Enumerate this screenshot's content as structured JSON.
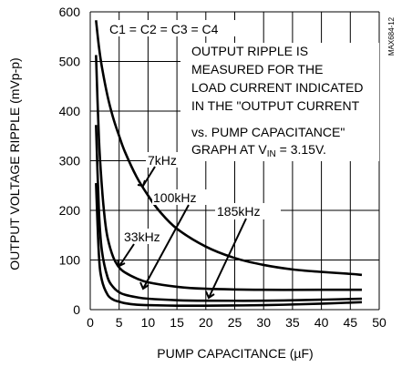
{
  "chart_data": {
    "type": "line",
    "title": "",
    "xlabel": "PUMP CAPACITANCE (µF)",
    "ylabel": "OUTPUT VOLTAGE RIPPLE (mVp-p)",
    "xlim": [
      0,
      50
    ],
    "ylim": [
      0,
      600
    ],
    "x_ticks": [
      "0",
      "5",
      "10",
      "15",
      "20",
      "25",
      "30",
      "35",
      "40",
      "45",
      "50"
    ],
    "y_ticks": [
      "0",
      "100",
      "200",
      "300",
      "400",
      "500",
      "600"
    ],
    "grid": true,
    "side_tag": "MAX684-12",
    "annotations": {
      "condition": "C1 = C2 = C3 = C4",
      "note_lines": [
        "OUTPUT RIPPLE IS",
        "MEASURED FOR THE",
        "LOAD CURRENT INDICATED",
        "IN THE \"OUTPUT CURRENT",
        "vs. PUMP CAPACITANCE\""
      ],
      "note_last_prefix": "GRAPH AT V",
      "note_last_sub": "IN",
      "note_last_suffix": " = 3.15V."
    },
    "series": [
      {
        "name": "7kHz",
        "x": [
          1,
          1.5,
          2,
          3,
          4,
          5,
          6,
          8,
          10,
          12,
          15,
          20,
          25,
          30,
          35,
          40,
          45,
          47
        ],
        "y": [
          583,
          530,
          490,
          430,
          385,
          350,
          318,
          268,
          230,
          198,
          163,
          127,
          104,
          90,
          81,
          76,
          72,
          70
        ]
      },
      {
        "name": "33kHz",
        "x": [
          1,
          1.5,
          2,
          2.5,
          3,
          4,
          5,
          6,
          8,
          10,
          15,
          20,
          30,
          40,
          47
        ],
        "y": [
          513,
          345,
          250,
          185,
          145,
          105,
          85,
          75,
          63,
          55,
          46,
          42,
          40,
          40,
          40
        ]
      },
      {
        "name": "100kHz",
        "x": [
          1,
          1.5,
          2,
          3,
          4,
          5,
          6,
          8,
          10,
          15,
          20,
          30,
          40,
          47
        ],
        "y": [
          372,
          200,
          120,
          65,
          45,
          35,
          30,
          25,
          22,
          19,
          18,
          18,
          20,
          22
        ]
      },
      {
        "name": "185kHz",
        "x": [
          1,
          1.5,
          2,
          3,
          4,
          5,
          6,
          8,
          10,
          15,
          20,
          30,
          40,
          47
        ],
        "y": [
          255,
          110,
          60,
          30,
          20,
          16,
          13,
          10,
          9,
          8,
          8,
          9,
          12,
          15
        ]
      }
    ],
    "series_labels": [
      "7kHz",
      "33kHz",
      "100kHz",
      "185kHz"
    ]
  }
}
